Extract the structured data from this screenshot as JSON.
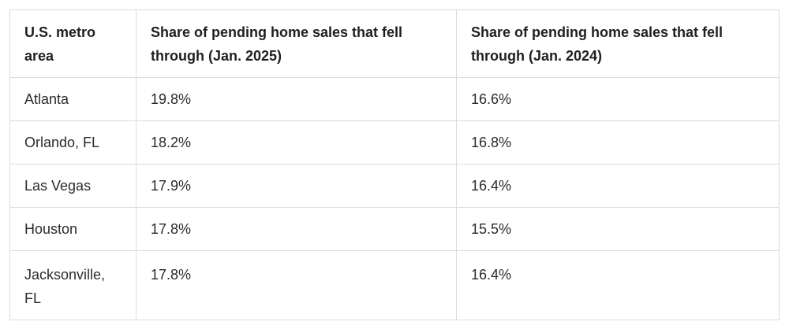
{
  "table": {
    "headers": [
      "U.S. metro area",
      "Share of pending home sales that fell through (Jan. 2025)",
      "Share of pending home sales that fell through (Jan. 2024)"
    ],
    "rows": [
      [
        "Atlanta",
        "19.8%",
        "16.6%"
      ],
      [
        "Orlando, FL",
        "18.2%",
        "16.8%"
      ],
      [
        "Las Vegas",
        "17.9%",
        "16.4%"
      ],
      [
        "Houston",
        "17.8%",
        "15.5%"
      ],
      [
        "Jacksonville, FL",
        "17.8%",
        "16.4%"
      ]
    ]
  }
}
